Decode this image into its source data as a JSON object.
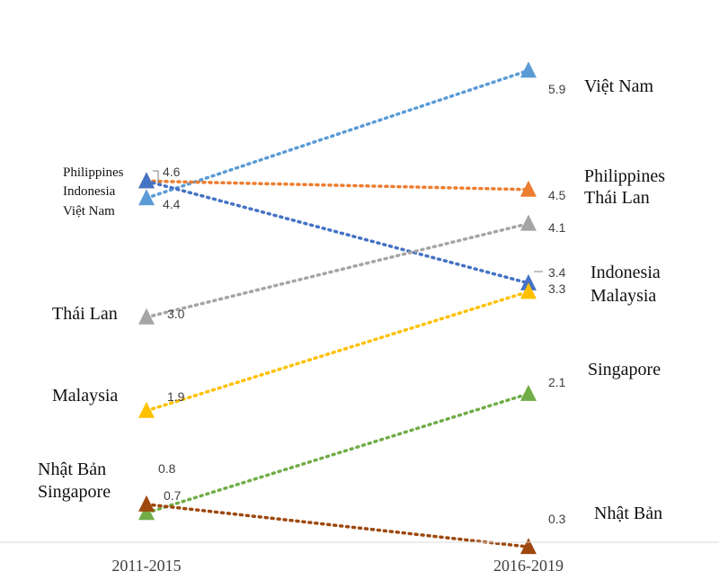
{
  "chart_data": {
    "type": "line",
    "categories": [
      "2011-2015",
      "2016-2019"
    ],
    "series": [
      {
        "name": "Việt Nam",
        "values": [
          4.4,
          5.9
        ],
        "color": "#5b9bd5",
        "left_label": "Việt Nam",
        "right_label": "Việt Nam"
      },
      {
        "name": "Philippines",
        "values": [
          4.6,
          4.5
        ],
        "color": "#ed7d31",
        "left_label": "Philippines",
        "right_label": "Philippines"
      },
      {
        "name": "Indonesia",
        "values": [
          4.6,
          3.4
        ],
        "color": "#4472c4",
        "left_label": "Indonesia",
        "right_label": "Indonesia"
      },
      {
        "name": "Thái Lan",
        "values": [
          3.0,
          4.1
        ],
        "color": "#a5a5a5",
        "left_label": "Thái Lan",
        "right_label": "Thái Lan"
      },
      {
        "name": "Malaysia",
        "values": [
          1.9,
          3.3
        ],
        "color": "#ffc000",
        "left_label": "Malaysia",
        "right_label": "Malaysia"
      },
      {
        "name": "Singapore",
        "values": [
          0.7,
          2.1
        ],
        "color": "#70ad47",
        "left_label": "Singapore",
        "right_label": "Singapore"
      },
      {
        "name": "Nhật Bản",
        "values": [
          0.8,
          0.3
        ],
        "color": "#9e480e",
        "left_label": "Nhật Bản",
        "right_label": "Nhật Bản"
      }
    ],
    "value_labels": {
      "left": [
        "4.6",
        "4.4",
        "3.0",
        "1.9",
        "0.8",
        "0.7"
      ],
      "right": [
        "5.9",
        "4.5",
        "4.1",
        "3.4",
        "3.3",
        "2.1",
        "0.3"
      ]
    },
    "grid": false,
    "legend": "none"
  }
}
